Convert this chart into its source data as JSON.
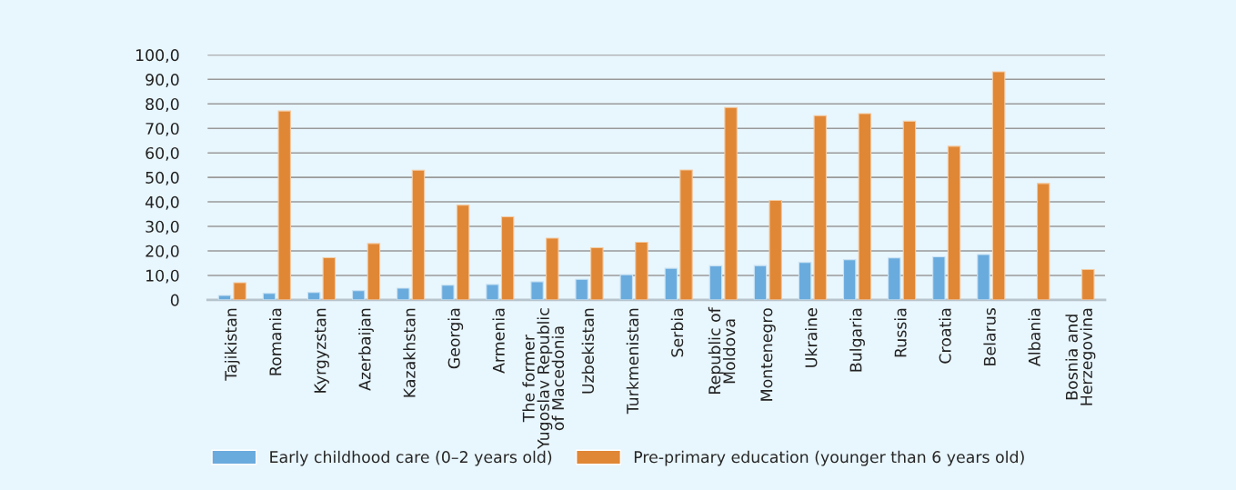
{
  "chart_data": {
    "type": "bar",
    "categories": [
      "Tajikistan",
      "Romania",
      "Kyrgyzstan",
      "Azerbaijan",
      "Kazakhstan",
      "Georgia",
      "Armenia",
      "The former\nYugoslav Republic\nof Macedonia",
      "Uzbekistan",
      "Turkmenistan",
      "Serbia",
      "Republic of\nMoldova",
      "Montenegro",
      "Ukraine",
      "Bulgaria",
      "Russia",
      "Croatia",
      "Belarus",
      "Albania",
      "Bosnia and\nHerzegovina"
    ],
    "series": [
      {
        "name": "Early childhood care (0–2 years old)",
        "color": "#6aabdd",
        "values": [
          1.8,
          2.7,
          3.0,
          3.8,
          4.8,
          6.0,
          6.3,
          7.4,
          8.4,
          10.3,
          12.9,
          13.9,
          14.0,
          15.3,
          16.4,
          17.1,
          17.6,
          18.5,
          null,
          null
        ]
      },
      {
        "name": "Pre-primary education (younger than 6 years old)",
        "color": "#e08736",
        "values": [
          7.0,
          77.1,
          17.2,
          23.0,
          52.9,
          38.7,
          33.9,
          25.2,
          21.3,
          23.5,
          53.0,
          78.5,
          40.6,
          75.2,
          76.0,
          72.9,
          62.7,
          93.1,
          47.5,
          12.4
        ]
      }
    ],
    "ylim": [
      0,
      100
    ],
    "yticks": [
      0,
      {
        "value": 10,
        "label": "10,0"
      },
      {
        "value": 20,
        "label": "20,0"
      },
      {
        "value": 30,
        "label": "30,0"
      },
      {
        "value": 40,
        "label": "40,0"
      },
      {
        "value": 50,
        "label": "50,0"
      },
      {
        "value": 60,
        "label": "60,0"
      },
      {
        "value": 70,
        "label": "70,0"
      },
      {
        "value": 80,
        "label": "80,0"
      },
      {
        "value": 90,
        "label": "90,0"
      },
      {
        "value": 100,
        "label": "100,0"
      }
    ],
    "grid": "y",
    "legend": "bottom"
  }
}
